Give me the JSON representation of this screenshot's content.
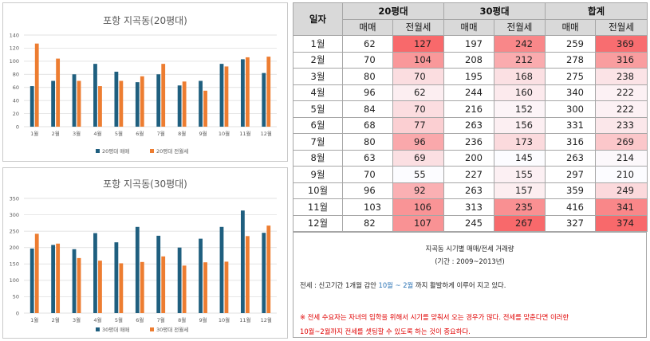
{
  "colors": {
    "sale": "#1f5f7f",
    "rent": "#ed7d31",
    "grid": "#d9d9d9",
    "heat_high": "#f8696b",
    "heat_low": "#fcfcff"
  },
  "chart_data": [
    {
      "type": "bar",
      "title": "포항 지곡동(20평대)",
      "categories": [
        "1월",
        "2월",
        "3월",
        "4월",
        "5월",
        "6월",
        "7월",
        "8월",
        "9월",
        "10월",
        "11월",
        "12월"
      ],
      "series": [
        {
          "name": "20평대 매매",
          "values": [
            62,
            70,
            80,
            96,
            84,
            68,
            80,
            63,
            70,
            96,
            103,
            82
          ]
        },
        {
          "name": "20평대 전월세",
          "values": [
            127,
            104,
            70,
            62,
            70,
            77,
            96,
            69,
            55,
            92,
            106,
            107
          ]
        }
      ],
      "ylim": [
        0,
        140
      ],
      "yticks": [
        0,
        20,
        40,
        60,
        80,
        100,
        120,
        140
      ],
      "grid": true,
      "legend": "bottom"
    },
    {
      "type": "bar",
      "title": "포항 지곡동(30평대)",
      "categories": [
        "1월",
        "2월",
        "3월",
        "4월",
        "5월",
        "6월",
        "7월",
        "8월",
        "9월",
        "10월",
        "11월",
        "12월"
      ],
      "series": [
        {
          "name": "30평대 매매",
          "values": [
            197,
            208,
            195,
            244,
            216,
            263,
            236,
            200,
            227,
            263,
            313,
            245
          ]
        },
        {
          "name": "30평대 전월세",
          "values": [
            242,
            212,
            168,
            160,
            152,
            156,
            173,
            145,
            155,
            157,
            235,
            267
          ]
        }
      ],
      "ylim": [
        0,
        350
      ],
      "yticks": [
        0,
        50,
        100,
        150,
        200,
        250,
        300,
        350
      ],
      "grid": true,
      "legend": "bottom"
    }
  ],
  "table": {
    "header_month": "일자",
    "groups": [
      "20평대",
      "30평대",
      "합계"
    ],
    "sub_sale": "매매",
    "sub_rent": "전월세",
    "rows": [
      {
        "month": "1월",
        "v": [
          62,
          127,
          197,
          242,
          259,
          369
        ]
      },
      {
        "month": "2월",
        "v": [
          70,
          104,
          208,
          212,
          278,
          316
        ]
      },
      {
        "month": "3월",
        "v": [
          80,
          70,
          195,
          168,
          275,
          238
        ]
      },
      {
        "month": "4월",
        "v": [
          96,
          62,
          244,
          160,
          340,
          222
        ]
      },
      {
        "month": "5월",
        "v": [
          84,
          70,
          216,
          152,
          300,
          222
        ]
      },
      {
        "month": "6월",
        "v": [
          68,
          77,
          263,
          156,
          331,
          233
        ]
      },
      {
        "month": "7월",
        "v": [
          80,
          96,
          236,
          173,
          316,
          269
        ]
      },
      {
        "month": "8월",
        "v": [
          63,
          69,
          200,
          145,
          263,
          214
        ]
      },
      {
        "month": "9월",
        "v": [
          70,
          55,
          227,
          155,
          297,
          210
        ]
      },
      {
        "month": "10월",
        "v": [
          96,
          92,
          263,
          157,
          359,
          249
        ]
      },
      {
        "month": "11월",
        "v": [
          103,
          106,
          313,
          235,
          416,
          341
        ]
      },
      {
        "month": "12월",
        "v": [
          82,
          107,
          245,
          267,
          327,
          374
        ]
      }
    ]
  },
  "note": {
    "title": "지곡동 시기별 매매/전세 거래량",
    "period": "(기간 : 2009~2013년)",
    "line1_pre": "전세 : 신고기간 1개월 감안 ",
    "line1_highlight": "10월 ~ 2월",
    "line1_post": " 까지 활발하게 이루어 지고 있다.",
    "warning_1": "※ 전세 수요자는 자녀의 입학을 위해서 시기를 맞춰서 오는 경우가 많다. 전세를 맞춘다면 이러한",
    "warning_2": "10월~2월까지 전세를 셋팅할 수 있도록 하는 것이 중요하다."
  }
}
